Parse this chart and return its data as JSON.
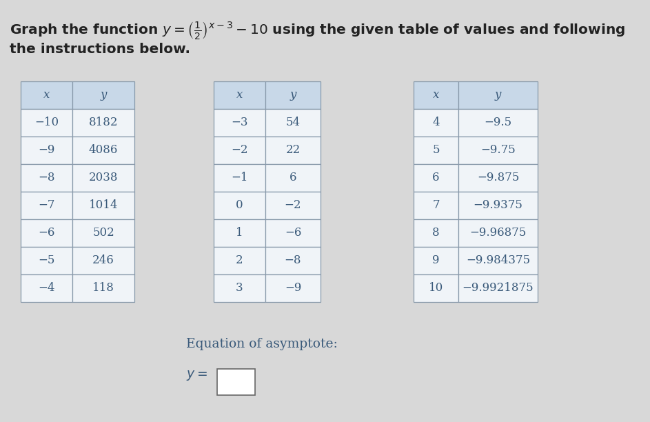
{
  "bg_color": "#d8d8d8",
  "title_part1": "Graph the function ",
  "title_math": "y = (1/2)^{x-3} - 10",
  "title_part2": " using the given table of values and following",
  "title_line2": "the instructions below.",
  "table1": {
    "headers": [
      "x",
      "y"
    ],
    "rows": [
      [
        "−10",
        "8182"
      ],
      [
        "−9",
        "4086"
      ],
      [
        "−8",
        "2038"
      ],
      [
        "−7",
        "1014"
      ],
      [
        "−6",
        "502"
      ],
      [
        "−5",
        "246"
      ],
      [
        "−4",
        "118"
      ]
    ]
  },
  "table2": {
    "headers": [
      "x",
      "y"
    ],
    "rows": [
      [
        "−3",
        "54"
      ],
      [
        "−2",
        "22"
      ],
      [
        "−1",
        "6"
      ],
      [
        "0",
        "−2"
      ],
      [
        "1",
        "−6"
      ],
      [
        "2",
        "−8"
      ],
      [
        "3",
        "−9"
      ]
    ]
  },
  "table3": {
    "headers": [
      "x",
      "y"
    ],
    "rows": [
      [
        "4",
        "−9.5"
      ],
      [
        "5",
        "−9.75"
      ],
      [
        "6",
        "−9.875"
      ],
      [
        "7",
        "−9.9375"
      ],
      [
        "8",
        "−9.96875"
      ],
      [
        "9",
        "−9.984375"
      ],
      [
        "10",
        "−9.9921875"
      ]
    ]
  },
  "asymptote_label": "Equation of asymptote:",
  "table_header_bg": "#c8d8e8",
  "table_row_bg": "#f0f4f8",
  "table_border_color": "#8899aa",
  "text_color": "#3a5a7a",
  "title_color": "#222222",
  "title_fontsize": 14.5,
  "table_fontsize": 12,
  "asym_fontsize": 13.5
}
